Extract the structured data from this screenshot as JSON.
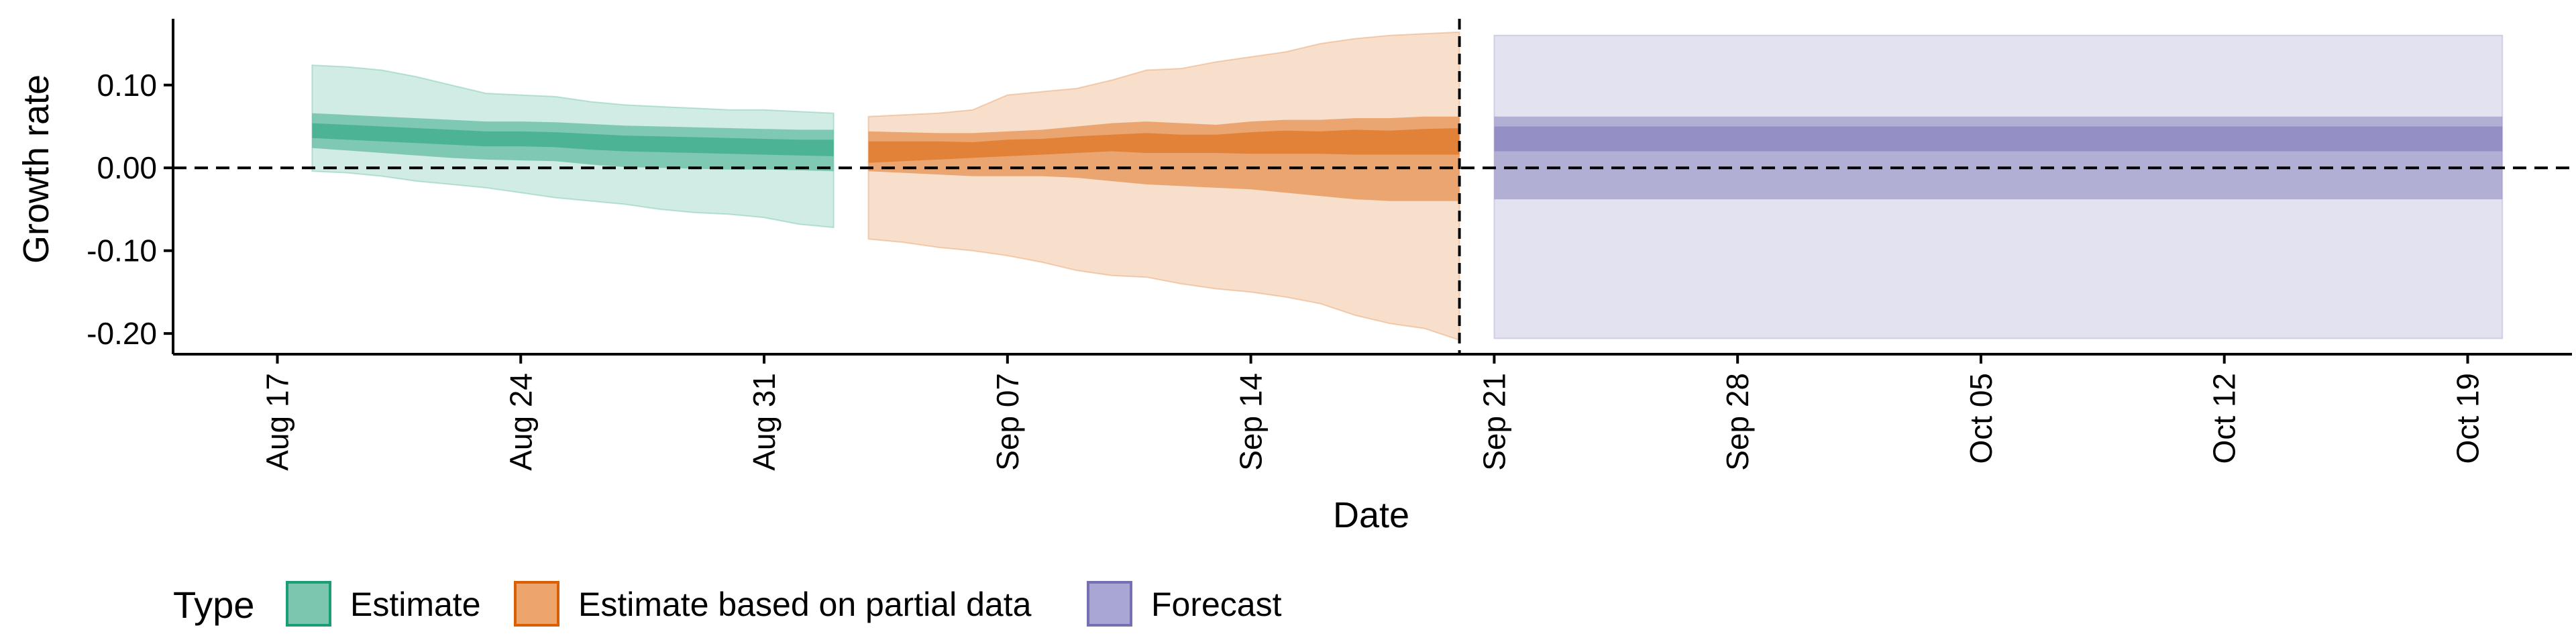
{
  "chart_data": {
    "type": "area",
    "xlabel": "Date",
    "ylabel": "Growth rate",
    "x_range": [
      "2020-08-14",
      "2020-10-22"
    ],
    "ylim": [
      -0.225,
      0.18
    ],
    "y_ticks": [
      {
        "value": 0.1,
        "label": "0.10"
      },
      {
        "value": 0.0,
        "label": "0.00"
      },
      {
        "value": -0.1,
        "label": "-0.10"
      },
      {
        "value": -0.2,
        "label": "-0.20"
      }
    ],
    "x_ticks": [
      {
        "date": "2020-08-17",
        "label": "Aug 17"
      },
      {
        "date": "2020-08-24",
        "label": "Aug 24"
      },
      {
        "date": "2020-08-31",
        "label": "Aug 31"
      },
      {
        "date": "2020-09-07",
        "label": "Sep 07"
      },
      {
        "date": "2020-09-14",
        "label": "Sep 14"
      },
      {
        "date": "2020-09-21",
        "label": "Sep 21"
      },
      {
        "date": "2020-09-28",
        "label": "Sep 28"
      },
      {
        "date": "2020-10-05",
        "label": "Oct 05"
      },
      {
        "date": "2020-10-12",
        "label": "Oct 12"
      },
      {
        "date": "2020-10-19",
        "label": "Oct 19"
      }
    ],
    "reference_lines": {
      "horizontal_y": 0.0,
      "vertical_date": "2020-09-20"
    },
    "grid": false,
    "legend": {
      "title": "Type",
      "placement": "bottom",
      "entries": [
        {
          "label": "Estimate",
          "fill": "#7CC6AF",
          "stroke": "#1B9E77"
        },
        {
          "label": "Estimate based on partial data",
          "fill": "#EDA56E",
          "stroke": "#D95F02"
        },
        {
          "label": "Forecast",
          "fill": "#A9A6D3",
          "stroke": "#7570B3"
        }
      ]
    },
    "series": [
      {
        "name": "Estimate",
        "color": "#1B9E77",
        "x": [
          "2020-08-18",
          "2020-08-19",
          "2020-08-20",
          "2020-08-21",
          "2020-08-22",
          "2020-08-23",
          "2020-08-24",
          "2020-08-25",
          "2020-08-26",
          "2020-08-27",
          "2020-08-28",
          "2020-08-29",
          "2020-08-30",
          "2020-08-31",
          "2020-09-01",
          "2020-09-02"
        ],
        "upper90": [
          0.124,
          0.122,
          0.118,
          0.11,
          0.1,
          0.09,
          0.088,
          0.086,
          0.08,
          0.076,
          0.074,
          0.072,
          0.07,
          0.07,
          0.068,
          0.066
        ],
        "upper50": [
          0.066,
          0.064,
          0.062,
          0.06,
          0.058,
          0.056,
          0.056,
          0.055,
          0.053,
          0.051,
          0.05,
          0.049,
          0.048,
          0.047,
          0.046,
          0.046
        ],
        "upper20": [
          0.054,
          0.052,
          0.05,
          0.048,
          0.046,
          0.044,
          0.044,
          0.043,
          0.041,
          0.039,
          0.038,
          0.037,
          0.036,
          0.035,
          0.034,
          0.034
        ],
        "lower20": [
          0.036,
          0.034,
          0.032,
          0.03,
          0.028,
          0.026,
          0.026,
          0.025,
          0.022,
          0.02,
          0.019,
          0.018,
          0.017,
          0.016,
          0.015,
          0.014
        ],
        "lower50": [
          0.024,
          0.021,
          0.018,
          0.015,
          0.012,
          0.01,
          0.009,
          0.008,
          0.004,
          0.001,
          0.0,
          -0.001,
          -0.002,
          -0.002,
          -0.003,
          -0.004
        ],
        "lower90": [
          -0.004,
          -0.006,
          -0.01,
          -0.016,
          -0.02,
          -0.024,
          -0.03,
          -0.036,
          -0.04,
          -0.044,
          -0.05,
          -0.054,
          -0.056,
          -0.06,
          -0.068,
          -0.072
        ]
      },
      {
        "name": "Estimate based on partial data",
        "color": "#D95F02",
        "x": [
          "2020-09-03",
          "2020-09-04",
          "2020-09-05",
          "2020-09-06",
          "2020-09-07",
          "2020-09-08",
          "2020-09-09",
          "2020-09-10",
          "2020-09-11",
          "2020-09-12",
          "2020-09-13",
          "2020-09-14",
          "2020-09-15",
          "2020-09-16",
          "2020-09-17",
          "2020-09-18",
          "2020-09-19",
          "2020-09-20"
        ],
        "upper90": [
          0.062,
          0.064,
          0.066,
          0.07,
          0.088,
          0.092,
          0.096,
          0.106,
          0.118,
          0.12,
          0.128,
          0.134,
          0.14,
          0.15,
          0.156,
          0.16,
          0.162,
          0.164
        ],
        "upper50": [
          0.044,
          0.043,
          0.042,
          0.042,
          0.044,
          0.046,
          0.05,
          0.054,
          0.056,
          0.054,
          0.052,
          0.056,
          0.058,
          0.058,
          0.06,
          0.06,
          0.062,
          0.062
        ],
        "upper20": [
          0.032,
          0.032,
          0.032,
          0.031,
          0.034,
          0.035,
          0.038,
          0.04,
          0.042,
          0.04,
          0.04,
          0.043,
          0.045,
          0.044,
          0.046,
          0.045,
          0.047,
          0.048
        ],
        "lower20": [
          0.006,
          0.008,
          0.01,
          0.012,
          0.014,
          0.016,
          0.018,
          0.02,
          0.018,
          0.018,
          0.018,
          0.017,
          0.017,
          0.017,
          0.016,
          0.016,
          0.016,
          0.016
        ],
        "lower50": [
          -0.004,
          -0.006,
          -0.008,
          -0.01,
          -0.01,
          -0.01,
          -0.012,
          -0.016,
          -0.02,
          -0.022,
          -0.024,
          -0.026,
          -0.03,
          -0.034,
          -0.038,
          -0.04,
          -0.04,
          -0.04
        ],
        "lower90": [
          -0.086,
          -0.09,
          -0.096,
          -0.1,
          -0.106,
          -0.114,
          -0.124,
          -0.13,
          -0.132,
          -0.14,
          -0.146,
          -0.15,
          -0.156,
          -0.164,
          -0.178,
          -0.188,
          -0.194,
          -0.208
        ]
      },
      {
        "name": "Forecast",
        "color": "#7570B3",
        "x": [
          "2020-09-21",
          "2020-10-20"
        ],
        "upper90": [
          0.16,
          0.16
        ],
        "upper50": [
          0.062,
          0.062
        ],
        "upper20": [
          0.05,
          0.05
        ],
        "lower20": [
          0.02,
          0.02
        ],
        "lower50": [
          -0.038,
          -0.038
        ],
        "lower90": [
          -0.206,
          -0.206
        ]
      }
    ]
  }
}
